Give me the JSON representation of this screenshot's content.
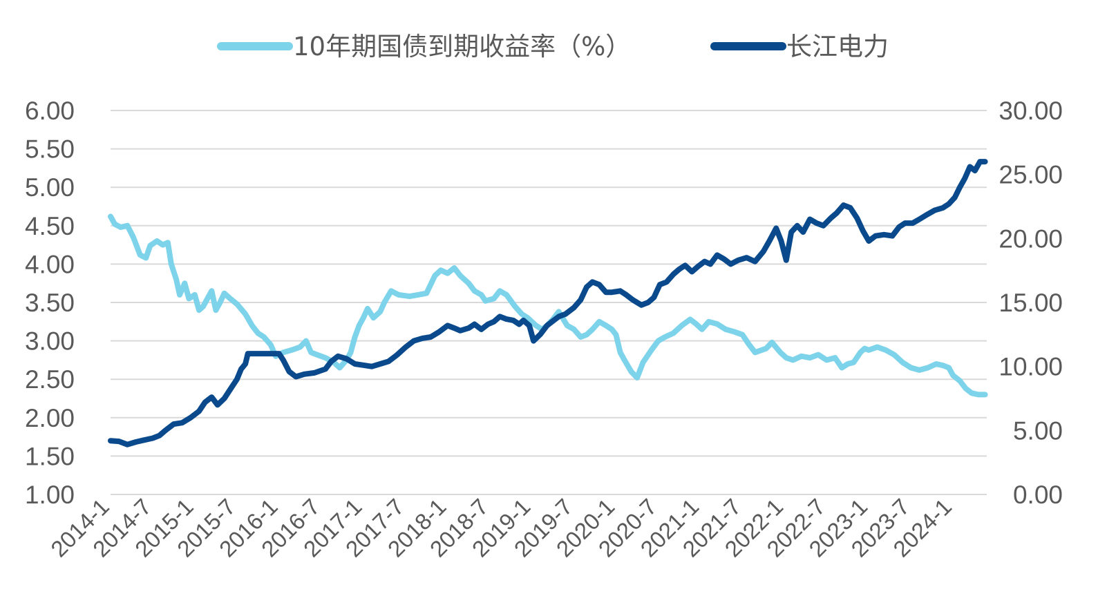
{
  "chart_data": {
    "type": "line",
    "title": "",
    "legend": {
      "placement": "top-center"
    },
    "grid": true,
    "x_tick_labels": [
      "2014-1",
      "2014-7",
      "2015-1",
      "2015-7",
      "2016-1",
      "2016-7",
      "2017-1",
      "2017-7",
      "2018-1",
      "2018-7",
      "2019-1",
      "2019-7",
      "2020-1",
      "2020-7",
      "2021-1",
      "2021-7",
      "2022-1",
      "2022-7",
      "2023-1",
      "2023-7",
      "2024-1"
    ],
    "x_range": [
      2014.0,
      2024.4
    ],
    "y_left": {
      "range": [
        1.0,
        6.0
      ],
      "ticks": [
        "1.00",
        "1.50",
        "2.00",
        "2.50",
        "3.00",
        "3.50",
        "4.00",
        "4.50",
        "5.00",
        "5.50",
        "6.00"
      ]
    },
    "y_right": {
      "range": [
        0.0,
        30.0
      ],
      "ticks": [
        "0.00",
        "5.00",
        "10.00",
        "15.00",
        "20.00",
        "25.00",
        "30.00"
      ]
    },
    "series": [
      {
        "name": "10年期国债到期收益率（%）",
        "axis": "left",
        "color": "#7dd3ea",
        "points": [
          [
            2014.0,
            4.62
          ],
          [
            2014.05,
            4.52
          ],
          [
            2014.12,
            4.48
          ],
          [
            2014.2,
            4.5
          ],
          [
            2014.27,
            4.35
          ],
          [
            2014.35,
            4.12
          ],
          [
            2014.42,
            4.08
          ],
          [
            2014.47,
            4.24
          ],
          [
            2014.55,
            4.3
          ],
          [
            2014.62,
            4.25
          ],
          [
            2014.68,
            4.28
          ],
          [
            2014.72,
            4.0
          ],
          [
            2014.78,
            3.8
          ],
          [
            2014.82,
            3.6
          ],
          [
            2014.88,
            3.75
          ],
          [
            2014.93,
            3.55
          ],
          [
            2015.0,
            3.6
          ],
          [
            2015.05,
            3.4
          ],
          [
            2015.1,
            3.45
          ],
          [
            2015.15,
            3.55
          ],
          [
            2015.2,
            3.65
          ],
          [
            2015.25,
            3.4
          ],
          [
            2015.3,
            3.5
          ],
          [
            2015.35,
            3.62
          ],
          [
            2015.42,
            3.55
          ],
          [
            2015.5,
            3.48
          ],
          [
            2015.6,
            3.35
          ],
          [
            2015.68,
            3.2
          ],
          [
            2015.75,
            3.1
          ],
          [
            2015.82,
            3.05
          ],
          [
            2015.9,
            2.95
          ],
          [
            2015.96,
            2.8
          ],
          [
            2016.05,
            2.85
          ],
          [
            2016.15,
            2.88
          ],
          [
            2016.25,
            2.92
          ],
          [
            2016.32,
            3.0
          ],
          [
            2016.38,
            2.85
          ],
          [
            2016.45,
            2.82
          ],
          [
            2016.55,
            2.78
          ],
          [
            2016.65,
            2.72
          ],
          [
            2016.72,
            2.65
          ],
          [
            2016.8,
            2.75
          ],
          [
            2016.85,
            2.85
          ],
          [
            2016.9,
            3.05
          ],
          [
            2016.95,
            3.2
          ],
          [
            2017.0,
            3.3
          ],
          [
            2017.05,
            3.42
          ],
          [
            2017.12,
            3.3
          ],
          [
            2017.2,
            3.38
          ],
          [
            2017.25,
            3.5
          ],
          [
            2017.33,
            3.65
          ],
          [
            2017.42,
            3.6
          ],
          [
            2017.55,
            3.58
          ],
          [
            2017.65,
            3.6
          ],
          [
            2017.75,
            3.62
          ],
          [
            2017.85,
            3.85
          ],
          [
            2017.92,
            3.92
          ],
          [
            2018.0,
            3.88
          ],
          [
            2018.08,
            3.95
          ],
          [
            2018.15,
            3.85
          ],
          [
            2018.25,
            3.75
          ],
          [
            2018.32,
            3.65
          ],
          [
            2018.4,
            3.6
          ],
          [
            2018.45,
            3.52
          ],
          [
            2018.55,
            3.55
          ],
          [
            2018.62,
            3.65
          ],
          [
            2018.7,
            3.6
          ],
          [
            2018.8,
            3.45
          ],
          [
            2018.88,
            3.35
          ],
          [
            2018.95,
            3.3
          ],
          [
            2019.05,
            3.2
          ],
          [
            2019.12,
            3.15
          ],
          [
            2019.18,
            3.2
          ],
          [
            2019.25,
            3.28
          ],
          [
            2019.32,
            3.38
          ],
          [
            2019.42,
            3.2
          ],
          [
            2019.5,
            3.15
          ],
          [
            2019.58,
            3.05
          ],
          [
            2019.65,
            3.08
          ],
          [
            2019.72,
            3.15
          ],
          [
            2019.8,
            3.25
          ],
          [
            2019.88,
            3.2
          ],
          [
            2019.95,
            3.15
          ],
          [
            2020.0,
            3.08
          ],
          [
            2020.05,
            2.85
          ],
          [
            2020.1,
            2.75
          ],
          [
            2020.18,
            2.6
          ],
          [
            2020.25,
            2.52
          ],
          [
            2020.32,
            2.72
          ],
          [
            2020.42,
            2.88
          ],
          [
            2020.5,
            3.0
          ],
          [
            2020.58,
            3.05
          ],
          [
            2020.68,
            3.1
          ],
          [
            2020.78,
            3.2
          ],
          [
            2020.88,
            3.28
          ],
          [
            2020.95,
            3.22
          ],
          [
            2021.02,
            3.15
          ],
          [
            2021.1,
            3.25
          ],
          [
            2021.2,
            3.22
          ],
          [
            2021.3,
            3.15
          ],
          [
            2021.4,
            3.12
          ],
          [
            2021.5,
            3.08
          ],
          [
            2021.58,
            2.95
          ],
          [
            2021.65,
            2.85
          ],
          [
            2021.78,
            2.9
          ],
          [
            2021.85,
            2.98
          ],
          [
            2021.95,
            2.85
          ],
          [
            2022.02,
            2.78
          ],
          [
            2022.1,
            2.75
          ],
          [
            2022.2,
            2.8
          ],
          [
            2022.3,
            2.78
          ],
          [
            2022.4,
            2.82
          ],
          [
            2022.5,
            2.75
          ],
          [
            2022.6,
            2.78
          ],
          [
            2022.68,
            2.65
          ],
          [
            2022.75,
            2.7
          ],
          [
            2022.82,
            2.72
          ],
          [
            2022.9,
            2.85
          ],
          [
            2022.95,
            2.9
          ],
          [
            2023.0,
            2.88
          ],
          [
            2023.1,
            2.92
          ],
          [
            2023.2,
            2.88
          ],
          [
            2023.3,
            2.82
          ],
          [
            2023.4,
            2.72
          ],
          [
            2023.5,
            2.65
          ],
          [
            2023.6,
            2.62
          ],
          [
            2023.7,
            2.65
          ],
          [
            2023.8,
            2.7
          ],
          [
            2023.88,
            2.68
          ],
          [
            2023.95,
            2.65
          ],
          [
            2024.0,
            2.55
          ],
          [
            2024.08,
            2.48
          ],
          [
            2024.15,
            2.38
          ],
          [
            2024.22,
            2.32
          ],
          [
            2024.3,
            2.3
          ],
          [
            2024.38,
            2.3
          ]
        ]
      },
      {
        "name": "长江电力",
        "axis": "right",
        "color": "#0a4a8c",
        "points": [
          [
            2014.0,
            4.2
          ],
          [
            2014.1,
            4.15
          ],
          [
            2014.2,
            3.9
          ],
          [
            2014.3,
            4.1
          ],
          [
            2014.4,
            4.25
          ],
          [
            2014.5,
            4.4
          ],
          [
            2014.58,
            4.6
          ],
          [
            2014.65,
            5.0
          ],
          [
            2014.75,
            5.5
          ],
          [
            2014.85,
            5.6
          ],
          [
            2014.95,
            6.0
          ],
          [
            2015.05,
            6.5
          ],
          [
            2015.12,
            7.2
          ],
          [
            2015.2,
            7.6
          ],
          [
            2015.27,
            7.0
          ],
          [
            2015.35,
            7.5
          ],
          [
            2015.42,
            8.2
          ],
          [
            2015.5,
            9.0
          ],
          [
            2015.55,
            9.8
          ],
          [
            2015.6,
            10.2
          ],
          [
            2015.63,
            11.0
          ],
          [
            2015.65,
            11.0
          ],
          [
            2016.0,
            11.0
          ],
          [
            2016.05,
            10.5
          ],
          [
            2016.12,
            9.6
          ],
          [
            2016.2,
            9.2
          ],
          [
            2016.3,
            9.4
          ],
          [
            2016.42,
            9.5
          ],
          [
            2016.55,
            9.8
          ],
          [
            2016.62,
            10.4
          ],
          [
            2016.7,
            10.8
          ],
          [
            2016.8,
            10.6
          ],
          [
            2016.9,
            10.2
          ],
          [
            2017.0,
            10.1
          ],
          [
            2017.1,
            10.0
          ],
          [
            2017.2,
            10.2
          ],
          [
            2017.3,
            10.4
          ],
          [
            2017.4,
            10.9
          ],
          [
            2017.5,
            11.5
          ],
          [
            2017.6,
            12.0
          ],
          [
            2017.7,
            12.2
          ],
          [
            2017.8,
            12.3
          ],
          [
            2017.9,
            12.7
          ],
          [
            2018.0,
            13.2
          ],
          [
            2018.08,
            13.0
          ],
          [
            2018.15,
            12.8
          ],
          [
            2018.25,
            13.0
          ],
          [
            2018.32,
            13.3
          ],
          [
            2018.4,
            12.9
          ],
          [
            2018.48,
            13.3
          ],
          [
            2018.55,
            13.5
          ],
          [
            2018.62,
            13.9
          ],
          [
            2018.7,
            13.7
          ],
          [
            2018.78,
            13.6
          ],
          [
            2018.85,
            13.3
          ],
          [
            2018.9,
            13.6
          ],
          [
            2018.97,
            13.2
          ],
          [
            2019.02,
            12.0
          ],
          [
            2019.1,
            12.5
          ],
          [
            2019.18,
            13.2
          ],
          [
            2019.26,
            13.6
          ],
          [
            2019.32,
            13.9
          ],
          [
            2019.4,
            14.1
          ],
          [
            2019.5,
            14.6
          ],
          [
            2019.58,
            15.2
          ],
          [
            2019.65,
            16.2
          ],
          [
            2019.72,
            16.6
          ],
          [
            2019.8,
            16.4
          ],
          [
            2019.88,
            15.8
          ],
          [
            2019.95,
            15.8
          ],
          [
            2020.05,
            15.9
          ],
          [
            2020.12,
            15.6
          ],
          [
            2020.2,
            15.2
          ],
          [
            2020.3,
            14.8
          ],
          [
            2020.38,
            15.0
          ],
          [
            2020.45,
            15.4
          ],
          [
            2020.52,
            16.4
          ],
          [
            2020.6,
            16.6
          ],
          [
            2020.68,
            17.2
          ],
          [
            2020.75,
            17.6
          ],
          [
            2020.82,
            17.9
          ],
          [
            2020.9,
            17.4
          ],
          [
            2020.97,
            17.8
          ],
          [
            2021.05,
            18.2
          ],
          [
            2021.12,
            18.0
          ],
          [
            2021.2,
            18.7
          ],
          [
            2021.28,
            18.4
          ],
          [
            2021.36,
            18.0
          ],
          [
            2021.45,
            18.3
          ],
          [
            2021.55,
            18.5
          ],
          [
            2021.65,
            18.2
          ],
          [
            2021.75,
            19.0
          ],
          [
            2021.82,
            19.8
          ],
          [
            2021.9,
            20.8
          ],
          [
            2021.96,
            19.8
          ],
          [
            2022.02,
            18.3
          ],
          [
            2022.08,
            20.5
          ],
          [
            2022.15,
            21.0
          ],
          [
            2022.22,
            20.5
          ],
          [
            2022.3,
            21.5
          ],
          [
            2022.38,
            21.2
          ],
          [
            2022.46,
            21.0
          ],
          [
            2022.55,
            21.6
          ],
          [
            2022.62,
            22.0
          ],
          [
            2022.7,
            22.6
          ],
          [
            2022.78,
            22.4
          ],
          [
            2022.86,
            21.6
          ],
          [
            2022.93,
            20.6
          ],
          [
            2023.0,
            19.8
          ],
          [
            2023.08,
            20.2
          ],
          [
            2023.18,
            20.3
          ],
          [
            2023.28,
            20.2
          ],
          [
            2023.36,
            20.9
          ],
          [
            2023.43,
            21.2
          ],
          [
            2023.52,
            21.2
          ],
          [
            2023.6,
            21.5
          ],
          [
            2023.7,
            21.9
          ],
          [
            2023.78,
            22.2
          ],
          [
            2023.88,
            22.4
          ],
          [
            2023.95,
            22.7
          ],
          [
            2024.02,
            23.2
          ],
          [
            2024.08,
            24.0
          ],
          [
            2024.14,
            24.7
          ],
          [
            2024.2,
            25.6
          ],
          [
            2024.26,
            25.3
          ],
          [
            2024.32,
            26.0
          ],
          [
            2024.38,
            26.0
          ]
        ]
      }
    ]
  }
}
